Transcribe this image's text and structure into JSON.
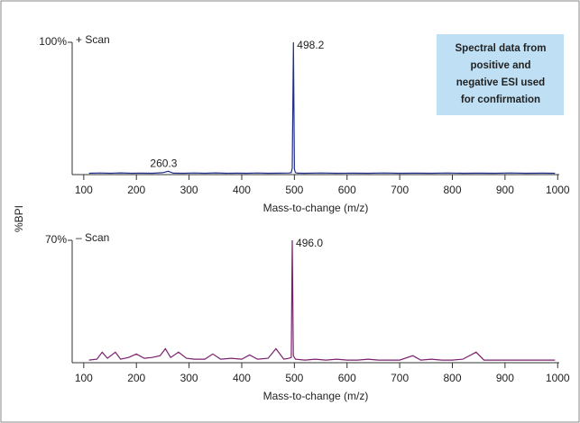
{
  "chart_data": [
    {
      "type": "line",
      "label": "+ Scan",
      "ylabel": "%BPI",
      "xlabel": "Mass-to-change (m/z)",
      "callout": [
        "Spectral data from",
        "positive and",
        "negative ESI used",
        "for confirmation"
      ],
      "annotations": [
        "498.2",
        "260.3"
      ],
      "x": [
        110,
        130,
        150,
        170,
        190,
        210,
        230,
        250,
        260.3,
        270,
        290,
        310,
        330,
        350,
        370,
        390,
        410,
        430,
        450,
        470,
        490,
        494,
        496,
        498.2,
        500,
        502,
        506,
        520,
        550,
        580,
        610,
        640,
        670,
        700,
        730,
        760,
        790,
        820,
        850,
        880,
        910,
        940,
        970,
        995
      ],
      "series": [
        {
          "name": "+ Scan",
          "color": "#1f2f8a",
          "values": [
            1,
            1.2,
            1,
            1.3,
            1,
            1.1,
            1,
            1.4,
            2.5,
            1.1,
            1,
            1.2,
            1,
            1.3,
            1,
            1.1,
            1,
            1.2,
            1,
            1.1,
            1.2,
            1.5,
            5,
            100,
            4,
            1.5,
            1.1,
            1,
            1.2,
            1,
            1.1,
            1,
            1.2,
            1,
            1.1,
            1,
            1.2,
            1,
            1.1,
            1,
            1.2,
            1,
            1.1,
            1
          ]
        }
      ],
      "xlim": [
        78,
        1003
      ],
      "xticks": [
        100,
        200,
        300,
        400,
        500,
        600,
        700,
        800,
        900,
        1000
      ],
      "ylim": [
        0,
        100
      ],
      "yticks": [
        {
          "value": 100,
          "label": "100%"
        }
      ]
    },
    {
      "type": "line",
      "label": "– Scan",
      "xlabel": "Mass-to-change (m/z)",
      "annotations": [
        "496.0"
      ],
      "x": [
        110,
        125,
        135,
        145,
        160,
        170,
        185,
        200,
        215,
        230,
        245,
        255,
        265,
        280,
        295,
        310,
        330,
        345,
        360,
        380,
        400,
        415,
        430,
        450,
        465,
        480,
        490,
        494,
        496,
        498,
        502,
        520,
        540,
        560,
        580,
        600,
        620,
        640,
        660,
        680,
        700,
        725,
        740,
        760,
        780,
        800,
        820,
        845,
        860,
        880,
        900,
        920,
        940,
        960,
        980,
        995
      ],
      "series": [
        {
          "name": "– Scan",
          "color": "#7b1f6e",
          "values": [
            1.5,
            2,
            6,
            2.5,
            6,
            2,
            3,
            5,
            2.5,
            3,
            4,
            8,
            3,
            6,
            2.5,
            2,
            2,
            5,
            2,
            2.5,
            2,
            4.5,
            2,
            2.5,
            8,
            2,
            2.5,
            3,
            70,
            4,
            2,
            1.5,
            2,
            1.5,
            2,
            1.5,
            1.5,
            2,
            1.5,
            1.5,
            1.5,
            4,
            1.5,
            2,
            1.5,
            1.5,
            2,
            6,
            1.5,
            1.5,
            1.5,
            1.5,
            1.5,
            1.5,
            1.5,
            1.5
          ]
        }
      ],
      "xlim": [
        78,
        1003
      ],
      "xticks": [
        100,
        200,
        300,
        400,
        500,
        600,
        700,
        800,
        900,
        1000
      ],
      "ylim": [
        0,
        70
      ],
      "yticks": [
        {
          "value": 70,
          "label": "70%"
        }
      ]
    }
  ]
}
